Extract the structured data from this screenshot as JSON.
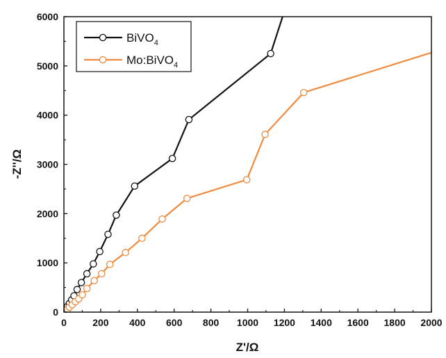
{
  "chart_data": {
    "type": "line",
    "xlabel": "Z'/Ω",
    "ylabel": "-Z''/Ω",
    "xlim": [
      0,
      2000
    ],
    "ylim": [
      0,
      6000
    ],
    "x_ticks": [
      0,
      200,
      400,
      600,
      800,
      1000,
      1200,
      1400,
      1600,
      1800,
      2000
    ],
    "y_ticks": [
      0,
      1000,
      2000,
      3000,
      4000,
      5000,
      6000
    ],
    "grid": false,
    "legend_position": "top-left",
    "series": [
      {
        "name": "BiVO4",
        "legend_main": "BiVO",
        "legend_sub": "4",
        "color": "#111111",
        "marker": "open-circle",
        "x": [
          10,
          20,
          30,
          42,
          55,
          72,
          95,
          125,
          160,
          195,
          240,
          285,
          385,
          590,
          680,
          1125,
          1190
        ],
        "y": [
          60,
          120,
          180,
          250,
          330,
          460,
          600,
          780,
          980,
          1230,
          1580,
          1970,
          2560,
          3120,
          3910,
          5250,
          6000
        ],
        "markers_on": [
          true,
          true,
          true,
          true,
          true,
          true,
          true,
          true,
          true,
          true,
          true,
          true,
          true,
          true,
          true,
          true,
          false
        ]
      },
      {
        "name": "Mo:BiVO4",
        "legend_main": "Mo:BiVO",
        "legend_sub": "4",
        "color": "#f08a3c",
        "marker": "open-circle",
        "x": [
          10,
          20,
          30,
          45,
          62,
          80,
          100,
          125,
          165,
          205,
          250,
          335,
          425,
          535,
          670,
          995,
          1095,
          1305,
          2000
        ],
        "y": [
          30,
          60,
          100,
          150,
          210,
          270,
          350,
          480,
          640,
          780,
          970,
          1210,
          1500,
          1890,
          2310,
          2690,
          3610,
          4460,
          5270
        ],
        "markers_on": [
          true,
          true,
          true,
          true,
          true,
          true,
          true,
          true,
          true,
          true,
          true,
          true,
          true,
          true,
          true,
          true,
          true,
          true,
          false
        ]
      }
    ]
  }
}
